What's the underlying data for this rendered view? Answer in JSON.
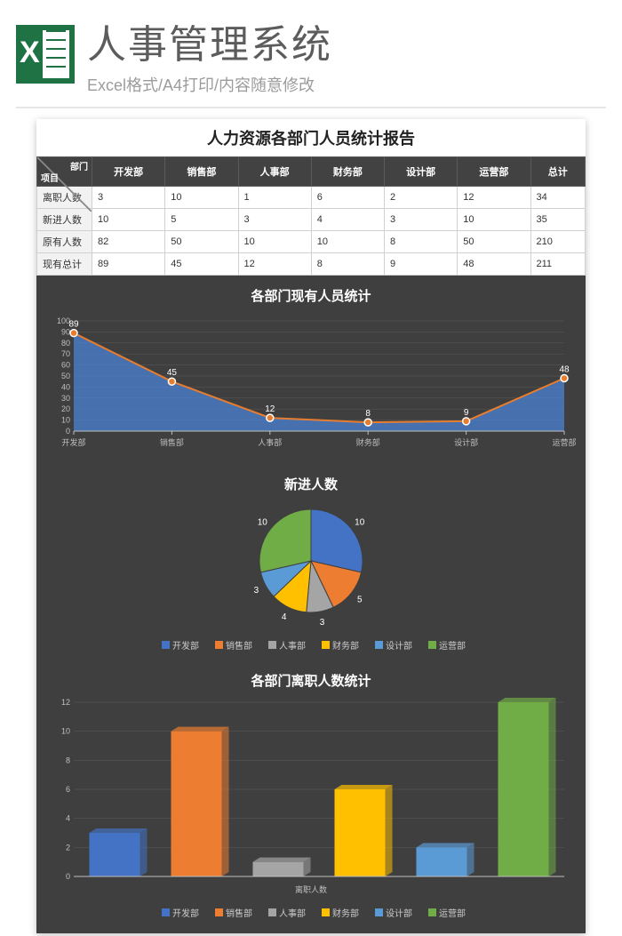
{
  "header": {
    "title": "人事管理系统",
    "subtitle": "Excel格式/A4打印/内容随意修改"
  },
  "report": {
    "title": "人力资源各部门人员统计报告",
    "diag_top": "部门",
    "diag_bottom": "项目",
    "columns": [
      "开发部",
      "销售部",
      "人事部",
      "财务部",
      "设计部",
      "运营部",
      "总计"
    ],
    "rows": [
      {
        "label": "离职人数",
        "cells": [
          "3",
          "10",
          "1",
          "6",
          "2",
          "12",
          "34"
        ]
      },
      {
        "label": "新进人数",
        "cells": [
          "10",
          "5",
          "3",
          "4",
          "3",
          "10",
          "35"
        ]
      },
      {
        "label": "原有人数",
        "cells": [
          "82",
          "50",
          "10",
          "10",
          "8",
          "50",
          "210"
        ]
      },
      {
        "label": "现有总计",
        "cells": [
          "89",
          "45",
          "12",
          "8",
          "9",
          "48",
          "211"
        ]
      }
    ]
  },
  "palette": {
    "dev": "#4472c4",
    "sales": "#ed7d31",
    "hr": "#a5a5a5",
    "fin": "#ffc000",
    "design": "#5b9bd5",
    "ops": "#70ad47"
  },
  "area_chart": {
    "type": "area",
    "title": "各部门现有人员统计",
    "categories": [
      "开发部",
      "销售部",
      "人事部",
      "财务部",
      "设计部",
      "运营部"
    ],
    "values": [
      89,
      45,
      12,
      8,
      9,
      48
    ],
    "fill_color": "#4a81d4",
    "fill_opacity": 0.75,
    "line_color": "#e87d2f",
    "marker_fill": "#e87d2f",
    "marker_stroke": "#ffffff",
    "label_color": "#ffffff",
    "axis_color": "#bfbfbf",
    "grid_color": "#5a5a5a",
    "y_max": 100,
    "y_step": 10,
    "axis_fontsize": 9,
    "datalabel_fontsize": 10
  },
  "pie_chart": {
    "type": "pie",
    "title": "新进人数",
    "slices": [
      {
        "label": "开发部",
        "value": 10,
        "color": "#4472c4"
      },
      {
        "label": "销售部",
        "value": 5,
        "color": "#ed7d31"
      },
      {
        "label": "人事部",
        "value": 3,
        "color": "#a5a5a5"
      },
      {
        "label": "财务部",
        "value": 4,
        "color": "#ffc000"
      },
      {
        "label": "设计部",
        "value": 3,
        "color": "#5b9bd5"
      },
      {
        "label": "运营部",
        "value": 10,
        "color": "#70ad47"
      }
    ],
    "label_color": "#ffffff",
    "datalabel_fontsize": 10
  },
  "bar_chart": {
    "type": "bar",
    "title": "各部门离职人数统计",
    "axis_label": "离职人数",
    "bars": [
      {
        "label": "开发部",
        "value": 3,
        "color": "#4472c4"
      },
      {
        "label": "销售部",
        "value": 10,
        "color": "#ed7d31"
      },
      {
        "label": "人事部",
        "value": 1,
        "color": "#a5a5a5"
      },
      {
        "label": "财务部",
        "value": 6,
        "color": "#ffc000"
      },
      {
        "label": "设计部",
        "value": 2,
        "color": "#5b9bd5"
      },
      {
        "label": "运营部",
        "value": 12,
        "color": "#70ad47"
      }
    ],
    "axis_color": "#bfbfbf",
    "grid_color": "#5a5a5a",
    "y_max": 12,
    "y_step": 2,
    "bar_width": 0.62,
    "axis_fontsize": 9
  }
}
